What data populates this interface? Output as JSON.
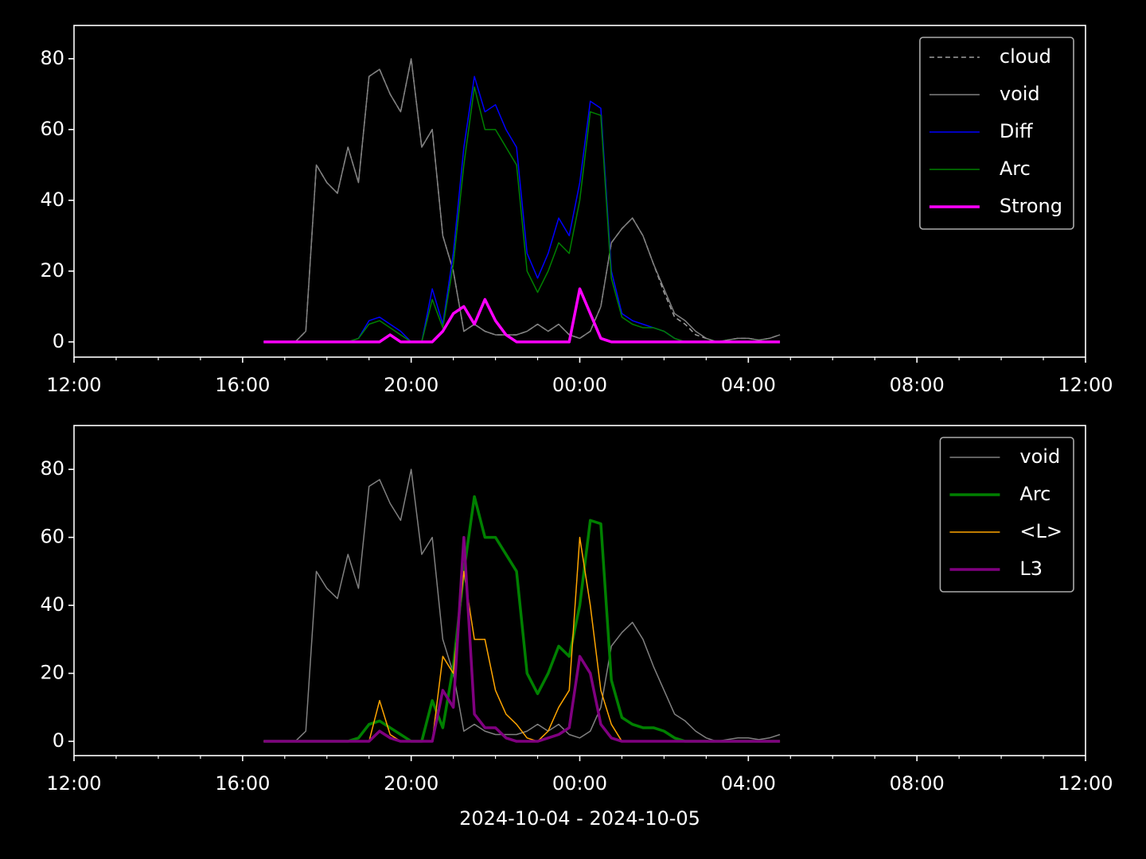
{
  "chart_data": [
    {
      "type": "line",
      "x": [
        16.5,
        16.75,
        17,
        17.25,
        17.5,
        17.75,
        18,
        18.25,
        18.5,
        18.75,
        19,
        19.25,
        19.5,
        19.75,
        20,
        20.25,
        20.5,
        20.75,
        21,
        21.25,
        21.5,
        21.75,
        22,
        22.25,
        22.5,
        22.75,
        23,
        23.25,
        23.5,
        23.75,
        24,
        24.25,
        24.5,
        24.75,
        25,
        25.25,
        25.5,
        25.75,
        26,
        26.25,
        26.5,
        26.75,
        27,
        27.25,
        27.5,
        27.75,
        28,
        28.25,
        28.5,
        28.75
      ],
      "series": [
        {
          "name": "cloud",
          "color": "#a0a0a0",
          "dash": true,
          "width": 1.5,
          "values": [
            0,
            0,
            0,
            0,
            3,
            50,
            45,
            42,
            55,
            45,
            75,
            77,
            70,
            65,
            80,
            55,
            60,
            30,
            20,
            3,
            5,
            3,
            2,
            2,
            2,
            3,
            5,
            3,
            5,
            2,
            1,
            3,
            10,
            28,
            32,
            35,
            30,
            22,
            14,
            7,
            5,
            2,
            1,
            0,
            0.5,
            1,
            1,
            0.5,
            1,
            2
          ]
        },
        {
          "name": "void",
          "color": "#808080",
          "width": 1.5,
          "values": [
            0,
            0,
            0,
            0,
            3,
            50,
            45,
            42,
            55,
            45,
            75,
            77,
            70,
            65,
            80,
            55,
            60,
            30,
            20,
            3,
            5,
            3,
            2,
            2,
            2,
            3,
            5,
            3,
            5,
            2,
            1,
            3,
            10,
            28,
            32,
            35,
            30,
            22,
            15,
            8,
            6,
            3,
            1,
            0,
            0.5,
            1,
            1,
            0.5,
            1,
            2
          ]
        },
        {
          "name": "Diff",
          "color": "#0000ff",
          "width": 1.5,
          "values": [
            0,
            0,
            0,
            0,
            0,
            0,
            0,
            0,
            0,
            1,
            6,
            7,
            5,
            3,
            0,
            0,
            15,
            5,
            25,
            55,
            75,
            65,
            67,
            60,
            55,
            25,
            18,
            25,
            35,
            30,
            45,
            68,
            66,
            20,
            8,
            6,
            5,
            4,
            3,
            1,
            0,
            0,
            0,
            0,
            0,
            0,
            0,
            0,
            0,
            0
          ]
        },
        {
          "name": "Arc",
          "color": "#008000",
          "width": 1.5,
          "values": [
            0,
            0,
            0,
            0,
            0,
            0,
            0,
            0,
            0,
            1,
            5,
            6,
            4,
            2,
            0,
            0,
            12,
            4,
            22,
            50,
            72,
            60,
            60,
            55,
            50,
            20,
            14,
            20,
            28,
            25,
            40,
            65,
            64,
            18,
            7,
            5,
            4,
            4,
            3,
            1,
            0,
            0,
            0,
            0,
            0,
            0,
            0,
            0,
            0,
            0
          ]
        },
        {
          "name": "Strong",
          "color": "#ff00ff",
          "width": 3.5,
          "values": [
            0,
            0,
            0,
            0,
            0,
            0,
            0,
            0,
            0,
            0,
            0,
            0,
            2,
            0,
            0,
            0,
            0,
            3,
            8,
            10,
            5,
            12,
            6,
            2,
            0,
            0,
            0,
            0,
            0,
            0,
            15,
            8,
            1,
            0,
            0,
            0,
            0,
            0,
            0,
            0,
            0,
            0,
            0,
            0,
            0,
            0,
            0,
            0,
            0,
            0
          ]
        }
      ],
      "xlim": [
        12,
        36
      ],
      "ylim": [
        -4.3,
        89.4
      ],
      "xticks": [
        {
          "value": 12,
          "label": "12:00"
        },
        {
          "value": 16,
          "label": "16:00"
        },
        {
          "value": 20,
          "label": "20:00"
        },
        {
          "value": 24,
          "label": "00:00"
        },
        {
          "value": 28,
          "label": "04:00"
        },
        {
          "value": 32,
          "label": "08:00"
        },
        {
          "value": 36,
          "label": "12:00"
        }
      ],
      "xminorticks": [
        13,
        14,
        15,
        17,
        18,
        19,
        21,
        22,
        23,
        25,
        26,
        27,
        29,
        30,
        31,
        33,
        34,
        35
      ],
      "yticks": [
        0,
        20,
        40,
        60,
        80
      ],
      "legend": "upper right"
    },
    {
      "type": "line",
      "xlabel": "2024-10-04 - 2024-10-05",
      "x": [
        16.5,
        16.75,
        17,
        17.25,
        17.5,
        17.75,
        18,
        18.25,
        18.5,
        18.75,
        19,
        19.25,
        19.5,
        19.75,
        20,
        20.25,
        20.5,
        20.75,
        21,
        21.25,
        21.5,
        21.75,
        22,
        22.25,
        22.5,
        22.75,
        23,
        23.25,
        23.5,
        23.75,
        24,
        24.25,
        24.5,
        24.75,
        25,
        25.25,
        25.5,
        25.75,
        26,
        26.25,
        26.5,
        26.75,
        27,
        27.25,
        27.5,
        27.75,
        28,
        28.25,
        28.5,
        28.75
      ],
      "series": [
        {
          "name": "void",
          "color": "#808080",
          "width": 1.5,
          "values": [
            0,
            0,
            0,
            0,
            3,
            50,
            45,
            42,
            55,
            45,
            75,
            77,
            70,
            65,
            80,
            55,
            60,
            30,
            20,
            3,
            5,
            3,
            2,
            2,
            2,
            3,
            5,
            3,
            5,
            2,
            1,
            3,
            10,
            28,
            32,
            35,
            30,
            22,
            15,
            8,
            6,
            3,
            1,
            0,
            0.5,
            1,
            1,
            0.5,
            1,
            2
          ]
        },
        {
          "name": "Arc",
          "color": "#008000",
          "width": 3.5,
          "values": [
            0,
            0,
            0,
            0,
            0,
            0,
            0,
            0,
            0,
            1,
            5,
            6,
            4,
            2,
            0,
            0,
            12,
            4,
            22,
            50,
            72,
            60,
            60,
            55,
            50,
            20,
            14,
            20,
            28,
            25,
            40,
            65,
            64,
            18,
            7,
            5,
            4,
            4,
            3,
            1,
            0,
            0,
            0,
            0,
            0,
            0,
            0,
            0,
            0,
            0
          ]
        },
        {
          "name": "<L>",
          "color": "#ffa500",
          "width": 1.5,
          "values": [
            0,
            0,
            0,
            0,
            0,
            0,
            0,
            0,
            0,
            0,
            0,
            12,
            2,
            0,
            0,
            0,
            0,
            25,
            20,
            50,
            30,
            30,
            15,
            8,
            5,
            1,
            0,
            3,
            10,
            15,
            60,
            40,
            15,
            5,
            0,
            0,
            0,
            0,
            0,
            0,
            0,
            0,
            0,
            0,
            0,
            0,
            0,
            0,
            0,
            0
          ]
        },
        {
          "name": "L3",
          "color": "#800080",
          "width": 3.5,
          "values": [
            0,
            0,
            0,
            0,
            0,
            0,
            0,
            0,
            0,
            0,
            0,
            3,
            1,
            0,
            0,
            0,
            0,
            15,
            10,
            60,
            8,
            4,
            4,
            1,
            0,
            0,
            0,
            1,
            2,
            4,
            25,
            20,
            5,
            1,
            0,
            0,
            0,
            0,
            0,
            0,
            0,
            0,
            0,
            0,
            0,
            0,
            0,
            0,
            0,
            0
          ]
        }
      ],
      "xlim": [
        12,
        36
      ],
      "ylim": [
        -4.2,
        92.9
      ],
      "xticks": [
        {
          "value": 12,
          "label": "12:00"
        },
        {
          "value": 16,
          "label": "16:00"
        },
        {
          "value": 20,
          "label": "20:00"
        },
        {
          "value": 24,
          "label": "00:00"
        },
        {
          "value": 28,
          "label": "04:00"
        },
        {
          "value": 32,
          "label": "08:00"
        },
        {
          "value": 36,
          "label": "12:00"
        }
      ],
      "xminorticks": [
        13,
        14,
        15,
        17,
        18,
        19,
        21,
        22,
        23,
        25,
        26,
        27,
        29,
        30,
        31,
        33,
        34,
        35
      ],
      "yticks": [
        0,
        20,
        40,
        60,
        80
      ],
      "legend": "upper right"
    }
  ]
}
